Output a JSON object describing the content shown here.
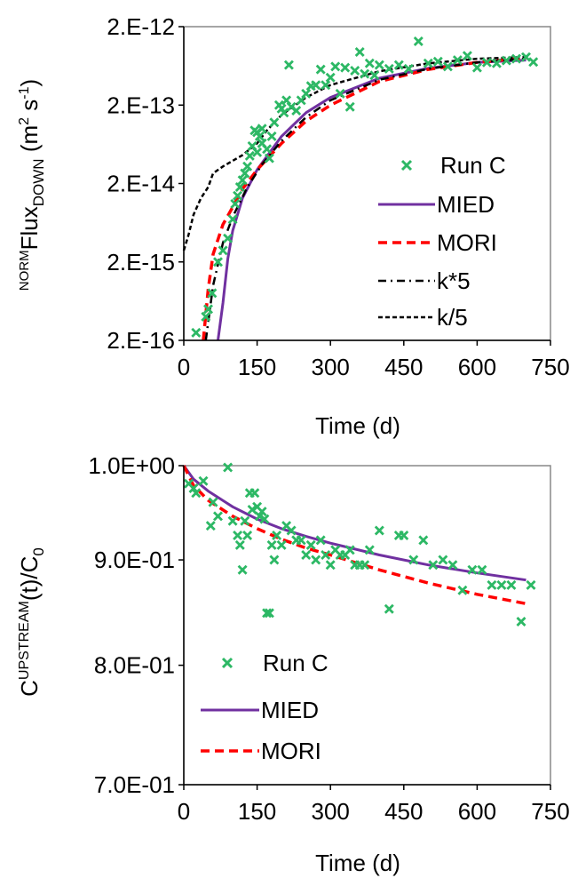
{
  "chart_data": [
    {
      "type": "line",
      "yscale": "log",
      "title": "",
      "xlabel": "Time (d)",
      "ylabel": {
        "pre_sup": "NORM",
        "main": "Flux",
        "sub": "DOWN",
        "units_open": " (m",
        "units_sup1": "2",
        "units_mid": " s",
        "units_sup2": "-1",
        "units_close": ")"
      },
      "xlim": [
        0,
        750
      ],
      "ylim": [
        2e-16,
        2e-12
      ],
      "x_ticks": [
        0,
        150,
        300,
        450,
        600,
        750
      ],
      "x_tick_labels": [
        "0",
        "150",
        "300",
        "450",
        "600",
        "750"
      ],
      "y_ticks": [
        2e-16,
        2e-15,
        2e-14,
        2e-13,
        2e-12
      ],
      "y_tick_labels": [
        "2.E-16",
        "2.E-15",
        "2.E-14",
        "2.E-13",
        "2.E-12"
      ],
      "grid": false,
      "legend_position": "right",
      "series": [
        {
          "name": "Run C",
          "kind": "scatter",
          "color": "#2db865",
          "marker": "x",
          "x": [
            25,
            45,
            50,
            58,
            70,
            80,
            90,
            100,
            105,
            110,
            115,
            120,
            125,
            130,
            135,
            140,
            145,
            150,
            150,
            155,
            160,
            160,
            170,
            175,
            180,
            185,
            195,
            200,
            205,
            210,
            215,
            220,
            230,
            240,
            250,
            260,
            270,
            280,
            290,
            300,
            310,
            320,
            330,
            340,
            350,
            360,
            370,
            380,
            390,
            400,
            420,
            440,
            460,
            480,
            500,
            520,
            540,
            560,
            580,
            600,
            620,
            640,
            660,
            680,
            700,
            715
          ],
          "y": [
            2.5e-16,
            4e-16,
            5e-16,
            8e-16,
            2e-15,
            2.8e-15,
            4e-15,
            7e-15,
            1.1e-14,
            1.4e-14,
            1.8e-14,
            2.2e-14,
            2.7e-14,
            3.3e-14,
            4.5e-14,
            6e-14,
            9.5e-14,
            9e-14,
            5e-14,
            8e-14,
            1e-13,
            6.5e-14,
            5.5e-14,
            4.2e-14,
            8e-14,
            1.2e-13,
            2e-13,
            1.8e-13,
            1.6e-13,
            2.3e-13,
            6.5e-13,
            1.9e-13,
            1.7e-13,
            2.3e-13,
            2.8e-13,
            3.5e-13,
            3.6e-13,
            5.7e-13,
            3.6e-13,
            4.5e-13,
            6.2e-13,
            2.8e-13,
            6e-13,
            1.9e-13,
            5.5e-13,
            9.5e-13,
            5e-13,
            6.8e-13,
            4.8e-13,
            6.5e-13,
            5.8e-13,
            6.5e-13,
            5.8e-13,
            1.3e-12,
            6.8e-13,
            7.2e-13,
            6.2e-13,
            7.5e-13,
            8.5e-13,
            6e-13,
            7e-13,
            6.8e-13,
            7.4e-13,
            7.8e-13,
            8.2e-13,
            7.1e-13
          ]
        },
        {
          "name": "MIED",
          "kind": "line",
          "color": "#7030a0",
          "dash": "",
          "x": [
            70,
            80,
            90,
            100,
            120,
            150,
            200,
            250,
            300,
            400,
            500,
            600,
            700
          ],
          "y": [
            2e-16,
            6e-16,
            2.2e-15,
            5e-15,
            1.3e-14,
            3e-14,
            8e-14,
            1.6e-13,
            2.5e-13,
            4.4e-13,
            5.9e-13,
            7e-13,
            7.5e-13
          ]
        },
        {
          "name": "MORI",
          "kind": "line",
          "color": "#ff0000",
          "dash": "10,6",
          "x": [
            40,
            50,
            60,
            80,
            100,
            120,
            150,
            200,
            250,
            300,
            400,
            500,
            600,
            700
          ],
          "y": [
            2e-16,
            9e-16,
            2.5e-15,
            6e-15,
            1e-14,
            1.7e-14,
            3e-14,
            6.5e-14,
            1.25e-13,
            2e-13,
            4e-13,
            5.7e-13,
            7e-13,
            8e-13
          ]
        },
        {
          "name": "k*5",
          "kind": "line",
          "color": "#000000",
          "dash": "9,5,2,5",
          "x": [
            45,
            60,
            80,
            100,
            130,
            160,
            200,
            250,
            300,
            400,
            500,
            600,
            700
          ],
          "y": [
            2e-16,
            1e-15,
            3.5e-15,
            7.5e-15,
            1.8e-14,
            3.5e-14,
            7e-14,
            1.4e-13,
            2.3e-13,
            4.2e-13,
            5.8e-13,
            7e-13,
            7.8e-13
          ]
        },
        {
          "name": "k/5",
          "kind": "line",
          "color": "#000000",
          "dash": "5,3",
          "x": [
            0,
            10,
            20,
            35,
            50,
            60,
            80,
            100,
            120,
            150,
            170,
            200,
            250,
            300,
            400,
            500,
            600,
            700
          ],
          "y": [
            2.8e-15,
            4.5e-15,
            8e-15,
            1.3e-14,
            1.8e-14,
            2.7e-14,
            3.3e-14,
            3.9e-14,
            4.6e-14,
            6.5e-14,
            9.5e-14,
            1.5e-13,
            2.5e-13,
            3.6e-13,
            5.4e-13,
            6.8e-13,
            7.8e-13,
            8.2e-13
          ]
        }
      ]
    },
    {
      "type": "line",
      "yscale": "log",
      "title": "",
      "xlabel": "Time (d)",
      "ylabel": {
        "main": "C",
        "sup": "UPSTREAM",
        "rest": "(t)/C",
        "sub": "0"
      },
      "xlim": [
        0,
        750
      ],
      "ylim": [
        0.7,
        1.0
      ],
      "x_ticks": [
        0,
        150,
        300,
        450,
        600,
        750
      ],
      "x_tick_labels": [
        "0",
        "150",
        "300",
        "450",
        "600",
        "750"
      ],
      "y_ticks": [
        0.7,
        0.8,
        0.9,
        1.0
      ],
      "y_tick_labels": [
        "7.0E-01",
        "8.0E-01",
        "9.0E-01",
        "1.0E+00"
      ],
      "grid": false,
      "legend_position": "bottom-left",
      "series": [
        {
          "name": "Run C",
          "kind": "scatter",
          "color": "#2db865",
          "marker": "x",
          "x": [
            10,
            20,
            25,
            40,
            55,
            60,
            70,
            90,
            100,
            110,
            115,
            120,
            125,
            130,
            135,
            140,
            145,
            150,
            155,
            160,
            165,
            170,
            175,
            180,
            185,
            190,
            200,
            210,
            220,
            230,
            240,
            250,
            260,
            270,
            280,
            290,
            300,
            310,
            320,
            330,
            340,
            350,
            360,
            370,
            380,
            400,
            420,
            440,
            450,
            470,
            490,
            510,
            530,
            550,
            570,
            590,
            610,
            630,
            650,
            670,
            690,
            710
          ],
          "y": [
            0.98,
            0.975,
            0.97,
            0.983,
            0.935,
            0.96,
            0.945,
            0.998,
            0.94,
            0.925,
            0.915,
            0.89,
            0.94,
            0.925,
            0.97,
            0.952,
            0.97,
            0.955,
            0.945,
            0.95,
            0.942,
            0.848,
            0.848,
            0.915,
            0.9,
            0.925,
            0.915,
            0.935,
            0.93,
            0.92,
            0.92,
            0.905,
            0.915,
            0.9,
            0.92,
            0.905,
            0.895,
            0.91,
            0.905,
            0.905,
            0.91,
            0.895,
            0.895,
            0.895,
            0.91,
            0.93,
            0.852,
            0.925,
            0.925,
            0.9,
            0.92,
            0.895,
            0.9,
            0.895,
            0.87,
            0.89,
            0.89,
            0.875,
            0.875,
            0.875,
            0.84,
            0.875
          ]
        },
        {
          "name": "MIED",
          "kind": "line",
          "color": "#7030a0",
          "dash": "",
          "x": [
            0,
            20,
            50,
            100,
            150,
            200,
            250,
            300,
            400,
            500,
            600,
            700
          ],
          "y": [
            1.0,
            0.985,
            0.972,
            0.955,
            0.942,
            0.932,
            0.924,
            0.917,
            0.905,
            0.895,
            0.887,
            0.88
          ]
        },
        {
          "name": "MORI",
          "kind": "line",
          "color": "#ff0000",
          "dash": "10,6",
          "x": [
            0,
            20,
            50,
            100,
            150,
            200,
            250,
            300,
            400,
            500,
            600,
            700
          ],
          "y": [
            1.0,
            0.978,
            0.962,
            0.945,
            0.932,
            0.921,
            0.912,
            0.905,
            0.89,
            0.877,
            0.866,
            0.857
          ]
        }
      ]
    }
  ]
}
